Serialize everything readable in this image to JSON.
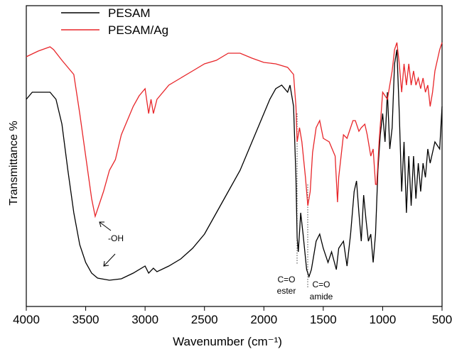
{
  "chart_data": {
    "type": "line",
    "x_label": "Wavenumber (cm⁻¹)",
    "y_label": "Transmittance %",
    "xlim": [
      4000,
      500
    ],
    "xticks": [
      4000,
      3500,
      3000,
      2500,
      2000,
      1500,
      1000,
      500
    ],
    "ylim": [
      0,
      424
    ],
    "legend": "upper left",
    "annotations": [
      "-OH",
      "C=O",
      "ester",
      "C=O",
      "amide"
    ],
    "series": [
      {
        "name": "PESAM",
        "color": "#000000",
        "x": [
          4000,
          3950,
          3900,
          3800,
          3750,
          3700,
          3650,
          3600,
          3550,
          3500,
          3450,
          3400,
          3300,
          3200,
          3100,
          3000,
          2970,
          2930,
          2900,
          2800,
          2700,
          2600,
          2500,
          2400,
          2300,
          2200,
          2100,
          2000,
          1950,
          1900,
          1850,
          1800,
          1780,
          1750,
          1730,
          1720,
          1710,
          1690,
          1670,
          1640,
          1620,
          1600,
          1560,
          1530,
          1500,
          1460,
          1430,
          1390,
          1370,
          1330,
          1300,
          1270,
          1240,
          1220,
          1200,
          1180,
          1160,
          1140,
          1120,
          1100,
          1080,
          1060,
          1040,
          1020,
          1000,
          980,
          960,
          940,
          920,
          900,
          880,
          860,
          840,
          820,
          800,
          780,
          760,
          740,
          720,
          700,
          680,
          660,
          640,
          620,
          600,
          560,
          520,
          500
        ],
        "values": [
          292,
          302,
          302,
          302,
          292,
          257,
          192,
          132,
          87,
          62,
          47,
          40,
          37,
          39,
          47,
          57,
          47,
          54,
          49,
          57,
          67,
          82,
          102,
          132,
          162,
          192,
          232,
          272,
          292,
          307,
          312,
          302,
          312,
          282,
          182,
          97,
          77,
          132,
          102,
          52,
          42,
          52,
          92,
          102,
          82,
          62,
          77,
          52,
          82,
          92,
          57,
          102,
          162,
          177,
          132,
          92,
          157,
          122,
          92,
          102,
          62,
          102,
          192,
          242,
          272,
          232,
          302,
          222,
          252,
          342,
          362,
          272,
          162,
          232,
          132,
          212,
          142,
          212,
          152,
          202,
          162,
          202,
          182,
          222,
          202,
          232,
          222,
          282
        ]
      },
      {
        "name": "PESAM/Ag",
        "color": "#e8262a",
        "x": [
          4000,
          3900,
          3800,
          3770,
          3700,
          3600,
          3550,
          3500,
          3450,
          3420,
          3400,
          3350,
          3300,
          3250,
          3200,
          3100,
          3050,
          3000,
          2970,
          2950,
          2930,
          2900,
          2800,
          2700,
          2600,
          2500,
          2400,
          2300,
          2200,
          2100,
          2000,
          1900,
          1800,
          1750,
          1730,
          1720,
          1700,
          1680,
          1650,
          1630,
          1610,
          1590,
          1560,
          1530,
          1500,
          1450,
          1400,
          1380,
          1370,
          1330,
          1300,
          1250,
          1230,
          1200,
          1180,
          1150,
          1130,
          1100,
          1080,
          1060,
          1050,
          1030,
          1000,
          960,
          920,
          900,
          880,
          860,
          840,
          820,
          800,
          780,
          760,
          740,
          720,
          700,
          680,
          660,
          640,
          620,
          600,
          580,
          560,
          520,
          500
        ],
        "values": [
          352,
          360,
          366,
          362,
          347,
          327,
          272,
          212,
          152,
          127,
          137,
          162,
          192,
          207,
          242,
          282,
          297,
          307,
          272,
          292,
          272,
          292,
          312,
          322,
          332,
          342,
          347,
          357,
          357,
          350,
          344,
          342,
          337,
          327,
          282,
          232,
          252,
          232,
          182,
          142,
          162,
          217,
          252,
          262,
          237,
          232,
          212,
          147,
          182,
          242,
          237,
          262,
          262,
          247,
          252,
          257,
          242,
          212,
          222,
          172,
          172,
          232,
          302,
          292,
          332,
          362,
          372,
          342,
          302,
          342,
          312,
          342,
          312,
          332,
          312,
          322,
          307,
          322,
          302,
          312,
          282,
          302,
          332,
          362,
          372
        ]
      }
    ]
  }
}
